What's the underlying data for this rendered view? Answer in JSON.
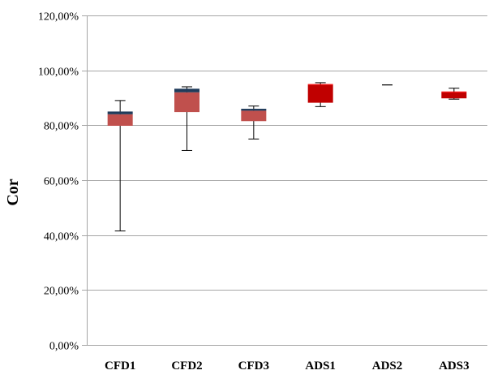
{
  "chart_data": {
    "type": "box",
    "ylabel": "Cor",
    "xlabel": "",
    "ylim": [
      0,
      120
    ],
    "ytick_values": [
      0,
      20,
      40,
      60,
      80,
      100,
      120
    ],
    "ytick_labels": [
      "0,00%",
      "20,00%",
      "40,00%",
      "60,00%",
      "80,00%",
      "100,00%",
      "120,00%"
    ],
    "grid": "horizontal",
    "categories": [
      "CFD1",
      "CFD2",
      "CFD3",
      "ADS1",
      "ADS2",
      "ADS3"
    ],
    "boxes": [
      {
        "min": 41.5,
        "q1": 79.8,
        "median": 84.0,
        "q3": 85.0,
        "max": 89.0
      },
      {
        "min": 70.8,
        "q1": 84.8,
        "median": 92.0,
        "q3": 93.3,
        "max": 94.0
      },
      {
        "min": 75.0,
        "q1": 81.5,
        "median": 85.3,
        "q3": 86.0,
        "max": 87.0
      },
      {
        "min": 86.8,
        "q1": 88.2,
        "median": 94.7,
        "q3": 95.0,
        "max": 95.5
      },
      {
        "min": 94.7,
        "q1": 94.7,
        "median": 94.7,
        "q3": 94.7,
        "max": 94.7
      },
      {
        "min": 89.5,
        "q1": 89.8,
        "median": 92.0,
        "q3": 92.3,
        "max": 93.5
      }
    ],
    "colors": {
      "cfd_box": "#c0504d",
      "cfd_upper": "#1f3b5a",
      "ads_box": "#c00000",
      "ads_upper": "#ff0000",
      "grid": "#a6a6a6",
      "whisker": "#000000"
    }
  }
}
